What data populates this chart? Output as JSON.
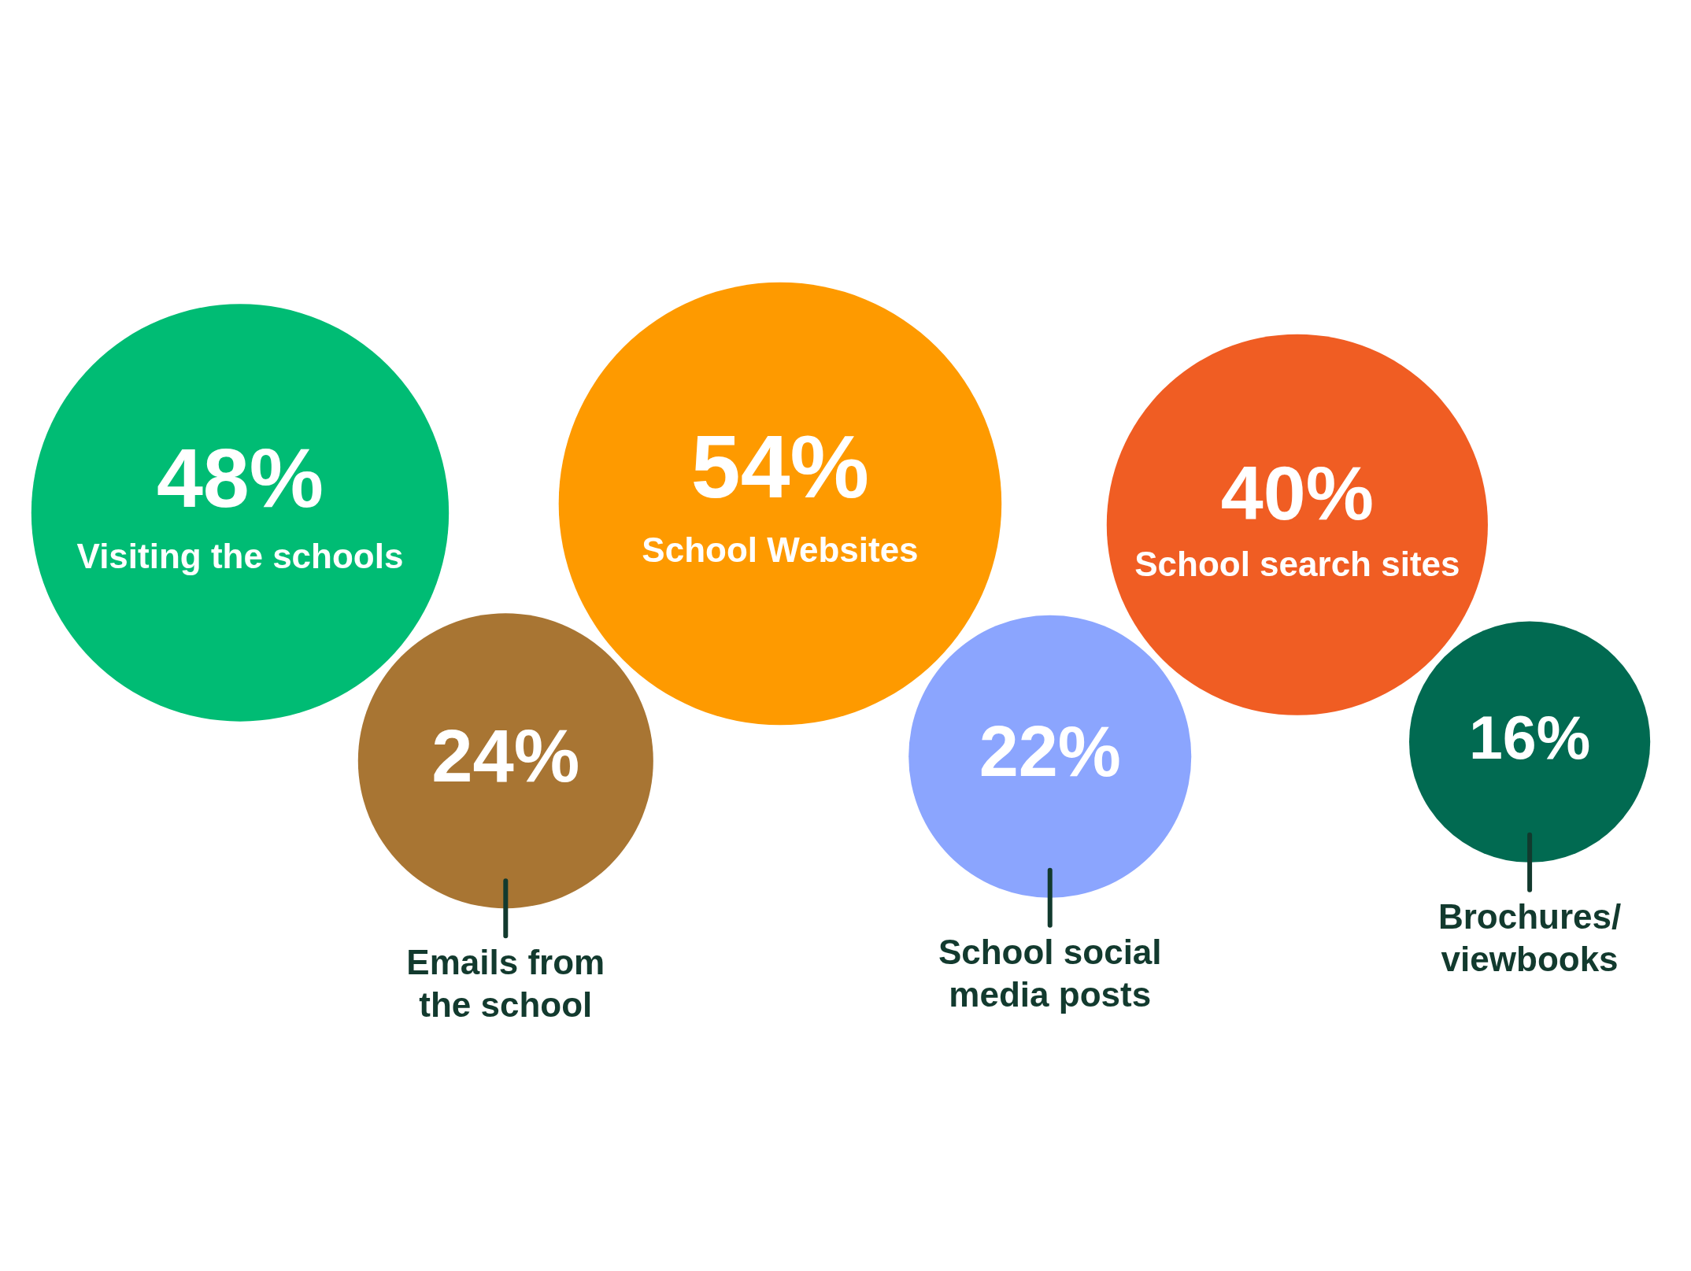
{
  "chart_data": {
    "type": "other",
    "categories": [
      "Visiting the schools",
      "Emails from the school",
      "School Websites",
      "School social media posts",
      "School search sites",
      "Brochures/ viewbooks"
    ],
    "values": [
      48,
      24,
      54,
      22,
      40,
      16
    ],
    "value_labels": [
      "48%",
      "24%",
      "54%",
      "22%",
      "40%",
      "16%"
    ],
    "colors": [
      "#00bc74",
      "#a87533",
      "#fe9a00",
      "#8ba5fe",
      "#f05d23",
      "#016a51"
    ],
    "legend": false
  }
}
